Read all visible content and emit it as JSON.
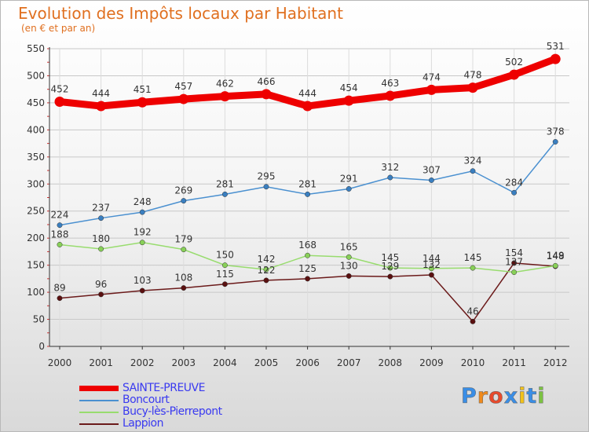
{
  "title": "Evolution des Impôts locaux par Habitant",
  "subtitle": "(en € et par an)",
  "logo_text": "Proxiti",
  "colors": {
    "title": "#e07020",
    "grid": "#c8c8c8",
    "axis": "#333333",
    "legend_text": "#3a3af0"
  },
  "chart_data": {
    "type": "line",
    "categories": [
      "2000",
      "2001",
      "2002",
      "2003",
      "2004",
      "2005",
      "2006",
      "2007",
      "2008",
      "2009",
      "2010",
      "2011",
      "2012"
    ],
    "yticks": [
      0,
      50,
      100,
      150,
      200,
      250,
      300,
      350,
      400,
      450,
      500,
      550
    ],
    "ylim": [
      0,
      550
    ],
    "grid": true,
    "legend_position": "bottom-left",
    "series": [
      {
        "name": "SAINTE-PREUVE",
        "color": "#ee0000",
        "emphasis": true,
        "values": [
          452,
          444,
          451,
          457,
          462,
          466,
          444,
          454,
          463,
          474,
          478,
          502,
          531
        ]
      },
      {
        "name": "Boncourt",
        "color": "#4a90d0",
        "marker": "#3a7fc0",
        "values": [
          224,
          237,
          248,
          269,
          281,
          295,
          281,
          291,
          312,
          307,
          324,
          284,
          378
        ]
      },
      {
        "name": "Bucy-lès-Pierrepont",
        "color": "#98dc6e",
        "marker": "#88d058",
        "values": [
          188,
          180,
          192,
          179,
          150,
          142,
          168,
          165,
          145,
          144,
          145,
          137,
          149
        ]
      },
      {
        "name": "Lappion",
        "color": "#6b1a1a",
        "marker": "#5a1010",
        "values": [
          89,
          96,
          103,
          108,
          115,
          122,
          125,
          130,
          129,
          132,
          46,
          154,
          148
        ]
      }
    ]
  }
}
